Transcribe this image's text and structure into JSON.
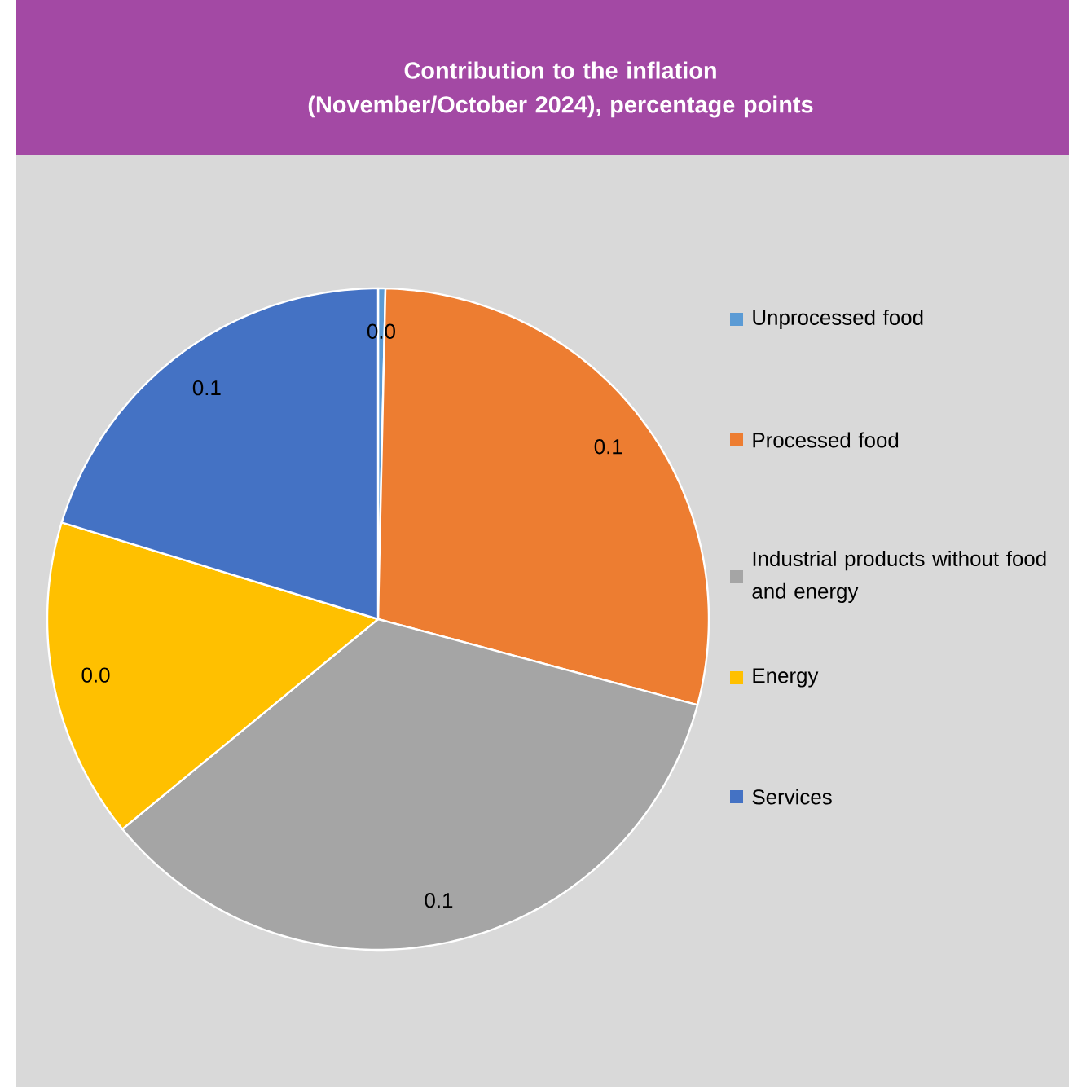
{
  "chart_data": {
    "type": "pie",
    "title": "Contribution to the inflation (November/October 2024), percentage points",
    "categories": [
      "Unprocessed food",
      "Processed food",
      "Industrial products without food and energy",
      "Energy",
      "Services"
    ],
    "values": [
      0.001,
      0.081,
      0.098,
      0.044,
      0.057
    ],
    "value_labels": [
      "0.0",
      "0.1",
      "0.1",
      "0.0",
      "0.1"
    ],
    "colors": [
      "#5b9bd5",
      "#ed7d31",
      "#a5a5a5",
      "#ffc000",
      "#4472c4"
    ],
    "legend": "right"
  }
}
